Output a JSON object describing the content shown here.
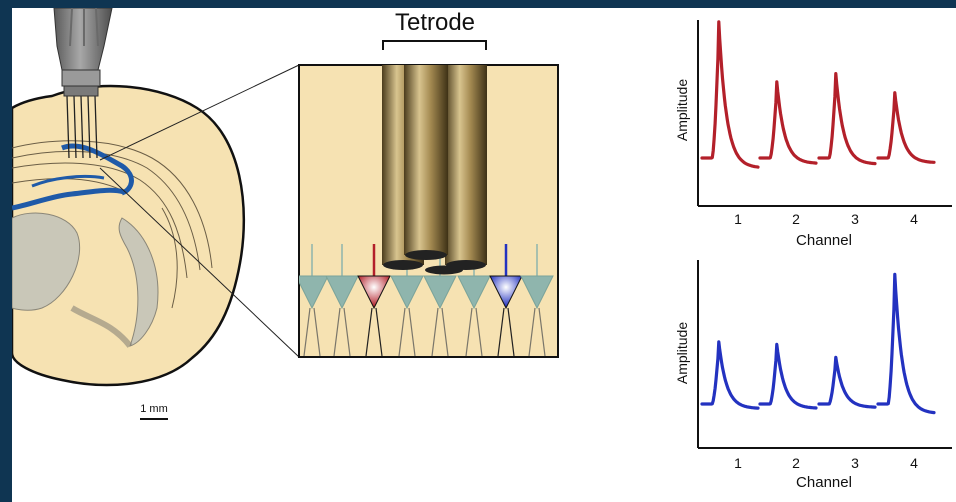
{
  "title": "Tetrode",
  "scale_bar_label": "1 mm",
  "colors": {
    "background_frame": "#0f3552",
    "brain_fill": "#f6e2b2",
    "hippocampus_blue": "#1f5aa8",
    "neuron_teal": "#8fb5ad",
    "neuron_red": "#b3202a",
    "neuron_blue": "#2332c0",
    "waveform_red": "#b3202a",
    "waveform_blue": "#2332c0"
  },
  "chart_data": [
    {
      "type": "line",
      "xlabel": "Channel",
      "ylabel": "Amplitude",
      "color": "#b3202a",
      "categories": [
        "1",
        "2",
        "3",
        "4"
      ],
      "peak_amplitudes": [
        1.0,
        0.56,
        0.62,
        0.48
      ]
    },
    {
      "type": "line",
      "xlabel": "Channel",
      "ylabel": "Amplitude",
      "color": "#2332c0",
      "categories": [
        "1",
        "2",
        "3",
        "4"
      ],
      "peak_amplitudes": [
        0.48,
        0.46,
        0.36,
        1.0
      ]
    }
  ]
}
